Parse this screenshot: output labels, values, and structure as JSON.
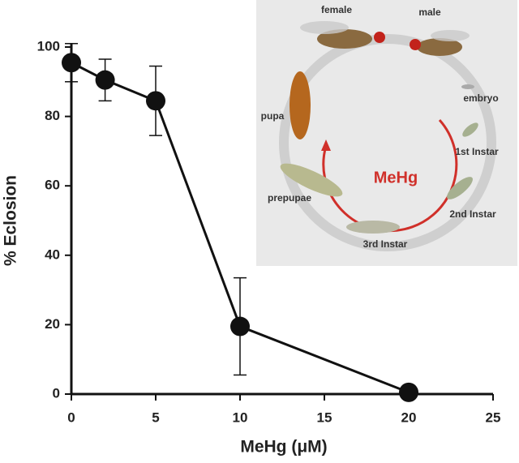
{
  "chart_data": {
    "type": "line",
    "x": [
      0,
      2,
      5,
      10,
      20
    ],
    "values": [
      95.5,
      90.5,
      84.5,
      19.5,
      0.5
    ],
    "errors": [
      5.5,
      6,
      10,
      14,
      0
    ],
    "color": "#111111",
    "xlabel": "MeHg  (μM)",
    "ylabel": "% Eclosion",
    "xlim": [
      0,
      25
    ],
    "xticks": [
      0,
      5,
      10,
      15,
      20,
      25
    ],
    "ylim": [
      0,
      100
    ],
    "yticks": [
      0,
      20,
      40,
      60,
      80,
      100
    ]
  },
  "inset": {
    "labels": {
      "female": "female",
      "male": "male",
      "embryo": "embryo",
      "first": "1st Instar",
      "second": "2nd Instar",
      "third": "3rd Instar",
      "prepupae": "prepupae",
      "pupa": "pupa",
      "treatment": "MeHg"
    }
  }
}
